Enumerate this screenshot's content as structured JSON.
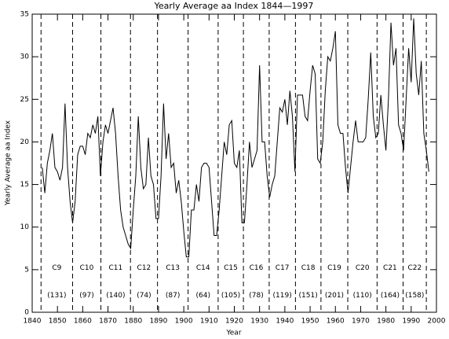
{
  "chart_data": {
    "type": "line",
    "title": "Yearly Average aa Index 1844—1997",
    "xlabel": "Year",
    "ylabel": "Yearly Average aa Index",
    "x": [
      1844,
      1845,
      1846,
      1847,
      1848,
      1849,
      1850,
      1851,
      1852,
      1853,
      1854,
      1855,
      1856,
      1857,
      1858,
      1859,
      1860,
      1861,
      1862,
      1863,
      1864,
      1865,
      1866,
      1867,
      1868,
      1869,
      1870,
      1871,
      1872,
      1873,
      1874,
      1875,
      1876,
      1877,
      1878,
      1879,
      1880,
      1881,
      1882,
      1883,
      1884,
      1885,
      1886,
      1887,
      1888,
      1889,
      1890,
      1891,
      1892,
      1893,
      1894,
      1895,
      1896,
      1897,
      1898,
      1899,
      1900,
      1901,
      1902,
      1903,
      1904,
      1905,
      1906,
      1907,
      1908,
      1909,
      1910,
      1911,
      1912,
      1913,
      1914,
      1915,
      1916,
      1917,
      1918,
      1919,
      1920,
      1921,
      1922,
      1923,
      1924,
      1925,
      1926,
      1927,
      1928,
      1929,
      1930,
      1931,
      1932,
      1933,
      1934,
      1935,
      1936,
      1937,
      1938,
      1939,
      1940,
      1941,
      1942,
      1943,
      1944,
      1945,
      1946,
      1947,
      1948,
      1949,
      1950,
      1951,
      1952,
      1953,
      1954,
      1955,
      1956,
      1957,
      1958,
      1959,
      1960,
      1961,
      1962,
      1963,
      1964,
      1965,
      1966,
      1967,
      1968,
      1969,
      1970,
      1971,
      1972,
      1973,
      1974,
      1975,
      1976,
      1977,
      1978,
      1979,
      1980,
      1981,
      1982,
      1983,
      1984,
      1985,
      1986,
      1987,
      1988,
      1989,
      1990,
      1991,
      1992,
      1993,
      1994,
      1995,
      1996,
      1997
    ],
    "values": [
      17,
      14,
      17.5,
      19,
      21,
      17,
      16.5,
      15.5,
      17,
      24.5,
      17,
      13,
      10.5,
      13,
      18.5,
      19.5,
      19.5,
      18.5,
      21,
      20.5,
      22,
      21,
      23,
      16,
      20,
      22,
      21,
      22.5,
      24,
      21,
      16,
      12,
      10,
      9,
      8,
      7.5,
      12,
      16,
      23,
      17,
      14.5,
      15,
      20.5,
      16,
      15,
      11,
      11,
      16,
      24.5,
      18,
      21,
      17,
      17.5,
      14,
      15.5,
      13,
      9.5,
      6.5,
      6.5,
      12,
      12,
      15,
      13,
      17,
      17.5,
      17.5,
      17,
      13,
      9,
      9,
      12,
      16,
      20,
      18.5,
      22,
      22.5,
      17.5,
      17,
      19,
      10.5,
      10.5,
      15,
      20,
      17,
      18,
      19,
      29,
      20,
      20,
      16,
      13.5,
      15,
      16,
      20,
      24,
      23.5,
      25,
      22,
      26,
      23,
      16.5,
      25.5,
      25.5,
      25.5,
      23,
      22.5,
      26,
      29,
      28,
      18,
      17.5,
      20,
      26,
      30,
      29.5,
      31,
      33,
      22,
      21,
      21,
      17,
      14,
      17,
      20,
      22.5,
      20,
      20,
      20,
      20.5,
      25,
      30.5,
      23,
      20.5,
      21,
      25.5,
      22,
      19,
      25,
      34,
      29,
      31,
      22,
      21,
      19,
      25,
      31,
      27,
      34.5,
      28,
      25.5,
      29.5,
      21,
      19,
      16.5
    ],
    "color": "#000000",
    "xlim": [
      1840,
      2000
    ],
    "xticks": [
      1840,
      1850,
      1860,
      1870,
      1880,
      1890,
      1900,
      1910,
      1920,
      1930,
      1940,
      1950,
      1960,
      1970,
      1980,
      1990,
      2000
    ],
    "ylim": [
      0,
      35
    ],
    "yticks": [
      0,
      5,
      10,
      15,
      20,
      25,
      30,
      35
    ],
    "cycle_minima": [
      1843.5,
      1856,
      1867.2,
      1878.9,
      1889.6,
      1901.7,
      1913.6,
      1923.6,
      1933.8,
      1944.2,
      1954.3,
      1964.9,
      1976.5,
      1986.8,
      1996
    ],
    "cycles": [
      {
        "name": "C9",
        "label": "(131)"
      },
      {
        "name": "C10",
        "label": "(97)"
      },
      {
        "name": "C11",
        "label": "(140)"
      },
      {
        "name": "C12",
        "label": "(74)"
      },
      {
        "name": "C13",
        "label": "(87)"
      },
      {
        "name": "C14",
        "label": "(64)"
      },
      {
        "name": "C15",
        "label": "(105)"
      },
      {
        "name": "C16",
        "label": "(78)"
      },
      {
        "name": "C17",
        "label": "(119)"
      },
      {
        "name": "C18",
        "label": "(151)"
      },
      {
        "name": "C19",
        "label": "(201)"
      },
      {
        "name": "C20",
        "label": "(110)"
      },
      {
        "name": "C21",
        "label": "(164)"
      },
      {
        "name": "C22",
        "label": "(158)"
      }
    ]
  }
}
